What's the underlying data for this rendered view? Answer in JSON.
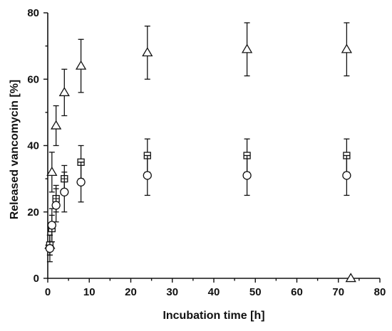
{
  "chart_data": {
    "type": "scatter",
    "xlabel": "Incubation time [h]",
    "ylabel": "Released vancomycin [%]",
    "xlim": [
      0,
      80
    ],
    "ylim": [
      0,
      80
    ],
    "xticks": [
      0,
      10,
      20,
      30,
      40,
      50,
      60,
      70,
      80
    ],
    "yticks": [
      0,
      20,
      40,
      60,
      80
    ],
    "grid": false,
    "legend": "none",
    "series": [
      {
        "marker": "triangle",
        "points": [
          {
            "x": 0.5,
            "y": 10,
            "err": 3
          },
          {
            "x": 1,
            "y": 32,
            "err": 6
          },
          {
            "x": 2,
            "y": 46,
            "err": 6
          },
          {
            "x": 4,
            "y": 56,
            "err": 7
          },
          {
            "x": 8,
            "y": 64,
            "err": 8
          },
          {
            "x": 24,
            "y": 68,
            "err": 8
          },
          {
            "x": 48,
            "y": 69,
            "err": 8
          },
          {
            "x": 72,
            "y": 69,
            "err": 8
          }
        ]
      },
      {
        "marker": "square",
        "points": [
          {
            "x": 0.5,
            "y": 10,
            "err": 3
          },
          {
            "x": 1,
            "y": 15,
            "err": 4
          },
          {
            "x": 2,
            "y": 24,
            "err": 4
          },
          {
            "x": 4,
            "y": 30,
            "err": 4
          },
          {
            "x": 8,
            "y": 35,
            "err": 5
          },
          {
            "x": 24,
            "y": 37,
            "err": 5
          },
          {
            "x": 48,
            "y": 37,
            "err": 5
          },
          {
            "x": 72,
            "y": 37,
            "err": 5
          }
        ]
      },
      {
        "marker": "circle",
        "points": [
          {
            "x": 0.5,
            "y": 9,
            "err": 4
          },
          {
            "x": 1,
            "y": 16,
            "err": 5
          },
          {
            "x": 2,
            "y": 22,
            "err": 5
          },
          {
            "x": 4,
            "y": 26,
            "err": 6
          },
          {
            "x": 8,
            "y": 29,
            "err": 6
          },
          {
            "x": 24,
            "y": 31,
            "err": 6
          },
          {
            "x": 48,
            "y": 31,
            "err": 6
          },
          {
            "x": 72,
            "y": 31,
            "err": 6
          }
        ]
      },
      {
        "marker": "triangle",
        "points": [
          {
            "x": 73,
            "y": 0,
            "err": 0
          }
        ]
      }
    ]
  }
}
